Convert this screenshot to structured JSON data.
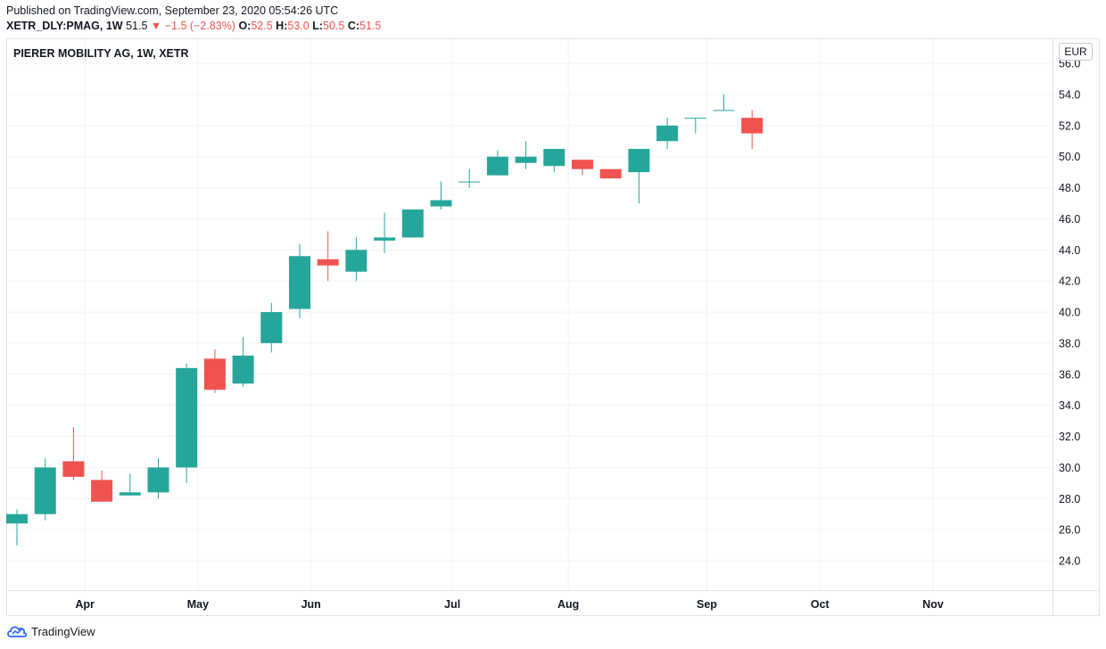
{
  "header": {
    "published": "Published on TradingView.com, September 23, 2020 05:54:26 UTC",
    "symbol": "XETR_DLY:PMAG, 1W",
    "last": "51.5",
    "change": "−1.5 (−2.83%)",
    "o_label": "O:",
    "o_value": "52.5",
    "h_label": "H:",
    "h_value": "53.0",
    "l_label": "L:",
    "l_value": "50.5",
    "c_label": "C:",
    "c_value": "51.5"
  },
  "currency": "EUR",
  "footer": {
    "brand": "TradingView"
  },
  "colors": {
    "up": "#26a69a",
    "down": "#ef5350",
    "grid": "#f0f3fa",
    "text": "#131722"
  },
  "chart_data": {
    "type": "candlestick",
    "title": "PIERER MOBILITY AG, 1W, XETR",
    "ylim": [
      23,
      56.5
    ],
    "y_ticks": [
      "24.0",
      "26.0",
      "28.0",
      "30.0",
      "32.0",
      "34.0",
      "36.0",
      "38.0",
      "40.0",
      "42.0",
      "44.0",
      "46.0",
      "48.0",
      "50.0",
      "52.0",
      "54.0",
      "56.0"
    ],
    "x_labels": [
      "Apr",
      "May",
      "Jun",
      "Jul",
      "Aug",
      "Sep",
      "Oct",
      "Nov"
    ],
    "x_label_slots": [
      2.4,
      6.4,
      10.4,
      15.4,
      19.5,
      24.4,
      28.4,
      32.4
    ],
    "candles": [
      {
        "o": 26.4,
        "h": 27.3,
        "l": 25.0,
        "c": 27.0
      },
      {
        "o": 27.0,
        "h": 30.6,
        "l": 26.6,
        "c": 30.0
      },
      {
        "o": 30.4,
        "h": 32.6,
        "l": 29.2,
        "c": 29.4
      },
      {
        "o": 29.2,
        "h": 29.8,
        "l": 27.8,
        "c": 27.8
      },
      {
        "o": 28.2,
        "h": 29.6,
        "l": 28.2,
        "c": 28.4
      },
      {
        "o": 28.4,
        "h": 30.6,
        "l": 28.0,
        "c": 30.0
      },
      {
        "o": 30.0,
        "h": 36.7,
        "l": 29.0,
        "c": 36.4
      },
      {
        "o": 37.0,
        "h": 37.6,
        "l": 34.8,
        "c": 35.0
      },
      {
        "o": 35.4,
        "h": 38.4,
        "l": 35.2,
        "c": 37.2
      },
      {
        "o": 38.0,
        "h": 40.6,
        "l": 37.4,
        "c": 40.0
      },
      {
        "o": 40.2,
        "h": 44.4,
        "l": 39.6,
        "c": 43.6
      },
      {
        "o": 43.4,
        "h": 45.2,
        "l": 42.0,
        "c": 43.0
      },
      {
        "o": 42.6,
        "h": 44.8,
        "l": 42.0,
        "c": 44.0
      },
      {
        "o": 44.6,
        "h": 46.4,
        "l": 43.8,
        "c": 44.8
      },
      {
        "o": 44.8,
        "h": 46.6,
        "l": 44.8,
        "c": 46.6
      },
      {
        "o": 46.8,
        "h": 48.4,
        "l": 46.6,
        "c": 47.2
      },
      {
        "o": 48.4,
        "h": 49.2,
        "l": 48.0,
        "c": 48.4
      },
      {
        "o": 48.8,
        "h": 50.4,
        "l": 48.8,
        "c": 50.0
      },
      {
        "o": 49.6,
        "h": 51.0,
        "l": 49.2,
        "c": 50.0
      },
      {
        "o": 49.4,
        "h": 50.5,
        "l": 49.0,
        "c": 50.5
      },
      {
        "o": 49.8,
        "h": 49.8,
        "l": 48.8,
        "c": 49.2
      },
      {
        "o": 49.2,
        "h": 49.2,
        "l": 48.6,
        "c": 48.6
      },
      {
        "o": 49.0,
        "h": 50.5,
        "l": 47.0,
        "c": 50.5
      },
      {
        "o": 51.0,
        "h": 52.5,
        "l": 50.5,
        "c": 52.0
      },
      {
        "o": 52.5,
        "h": 52.5,
        "l": 51.5,
        "c": 52.5
      },
      {
        "o": 53.0,
        "h": 54.0,
        "l": 53.0,
        "c": 53.0
      },
      {
        "o": 52.5,
        "h": 53.0,
        "l": 50.5,
        "c": 51.5
      }
    ]
  }
}
